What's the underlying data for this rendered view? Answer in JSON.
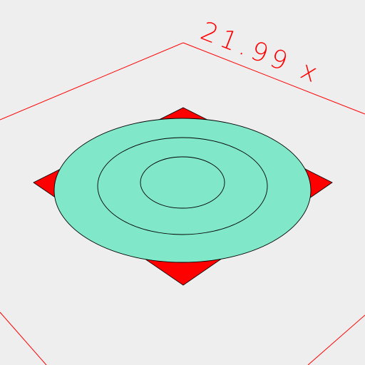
{
  "viewport": {
    "background_color": "#eeeeee"
  },
  "build_plate": {
    "outline_color": "#ff0000",
    "dimension_label": "21.99 x"
  },
  "model": {
    "body_color": "#80e8c8",
    "outline_color": "#000000",
    "corner_marker_color": "#ff0000"
  }
}
